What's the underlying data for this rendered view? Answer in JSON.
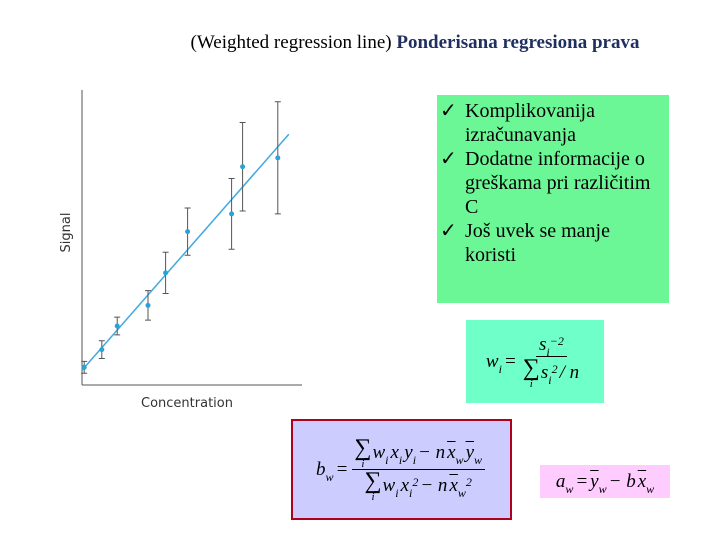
{
  "title": {
    "plain": "(Weighted regression line)",
    "bold": "Ponderisana regresiona prava"
  },
  "chart_data": {
    "type": "scatter",
    "x_label": "Concentration",
    "y_label": "Signal",
    "xlim": [
      0,
      10
    ],
    "ylim": [
      0,
      10
    ],
    "x": [
      0.1,
      0.9,
      1.6,
      3.0,
      3.8,
      4.8,
      6.8,
      7.3,
      8.9
    ],
    "values": [
      0.6,
      1.2,
      2.0,
      2.7,
      3.8,
      5.2,
      5.8,
      7.4,
      7.7
    ],
    "errors": [
      0.2,
      0.3,
      0.3,
      0.5,
      0.7,
      0.8,
      1.2,
      1.5,
      1.9
    ],
    "color": "#29a3d6",
    "error_color": "#555555",
    "fit_line": {
      "x": [
        0,
        9.4
      ],
      "y": [
        0.5,
        8.5
      ],
      "color": "#3fa9e0"
    }
  },
  "bullets": [
    "Komplikovanija izračunavanja",
    "Dodatne informacije o greškama pri različitim C",
    "Još uvek se manje koristi"
  ],
  "weight_formula": {
    "lhs": [
      {
        "t": "w",
        "sub": "i"
      },
      {
        "t": "="
      }
    ],
    "num": [
      {
        "t": "s",
        "sub": "i",
        "sup": "−2"
      }
    ],
    "den": [
      {
        "t": "∑",
        "under": "i"
      },
      {
        "t": "s",
        "sub": "i",
        "sup": "2"
      },
      {
        "t": "/ n"
      }
    ]
  },
  "slope_formula": {
    "lhs": [
      {
        "t": "b",
        "sub": "w"
      },
      {
        "t": "="
      }
    ],
    "num": [
      {
        "t": "∑",
        "under": "i"
      },
      {
        "t": "w",
        "sub": "i"
      },
      {
        "t": "x",
        "sub": "i"
      },
      {
        "t": "y",
        "sub": "i"
      },
      {
        "t": "− n"
      },
      {
        "t": "x",
        "sub": "w",
        "bar": true
      },
      {
        "t": "y",
        "sub": "w",
        "bar": true
      }
    ],
    "den": [
      {
        "t": "∑",
        "under": "i"
      },
      {
        "t": "w",
        "sub": "i"
      },
      {
        "t": "x",
        "sub": "i",
        "sup": "2"
      },
      {
        "t": "− n"
      },
      {
        "t": "x",
        "sub": "w",
        "sup": "2",
        "bar": true
      }
    ]
  },
  "intercept_formula": {
    "lhs": [
      {
        "t": "a",
        "sub": "w"
      },
      {
        "t": "="
      }
    ],
    "expr": [
      {
        "t": "y",
        "sub": "w",
        "bar": true
      },
      {
        "t": "− b"
      },
      {
        "t": "x",
        "sub": "w",
        "bar": true
      }
    ]
  }
}
